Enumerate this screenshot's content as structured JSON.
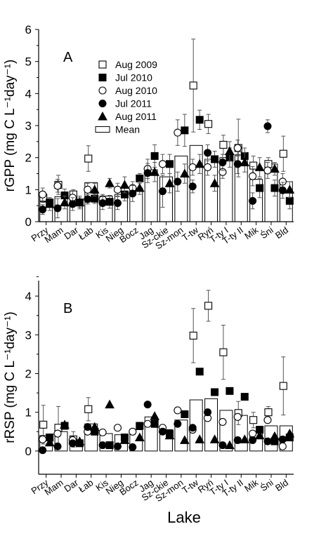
{
  "figure": {
    "xlabel": "Lake"
  },
  "legend": {
    "entries": [
      {
        "label": "Aug 2009",
        "marker": "open-square"
      },
      {
        "label": "Jul 2010",
        "marker": "filled-square"
      },
      {
        "label": "Aug 2010",
        "marker": "open-circle"
      },
      {
        "label": "Jul 2011",
        "marker": "filled-circle"
      },
      {
        "label": "Aug 2011",
        "marker": "filled-triangle"
      },
      {
        "label": "Mean",
        "marker": "bar"
      }
    ],
    "placement": "top-left of panel A"
  },
  "chart_data": [
    {
      "type": "bar",
      "panel_label": "A",
      "ylabel": "rGPP (mg C L⁻¹day⁻¹)",
      "ylim": [
        0,
        6
      ],
      "yticks": [
        0,
        1,
        2,
        3,
        4,
        5,
        6
      ],
      "categories": [
        "Przy",
        "Mam",
        "Dar",
        "Łab",
        "Kis",
        "Nieg",
        "Bocz",
        "Jag",
        "Sz-ckie",
        "Sz-mon",
        "T-tw",
        "Ryń",
        "T-ty I",
        "T-ty II",
        "Mik",
        "Śni",
        "Bld"
      ],
      "mean": [
        0.62,
        0.78,
        0.65,
        1.22,
        0.8,
        0.85,
        1.05,
        1.62,
        1.4,
        2.05,
        2.38,
        1.95,
        2.0,
        2.08,
        1.32,
        1.8,
        1.25
      ],
      "series": [
        {
          "name": "Aug 2009",
          "values": [
            0.75,
            1.15,
            0.85,
            1.97,
            null,
            null,
            null,
            null,
            null,
            null,
            4.25,
            3.05,
            2.4,
            2.3,
            1.75,
            1.8,
            2.12
          ],
          "err": [
            0.15,
            0.3,
            0.15,
            0.4,
            null,
            null,
            null,
            null,
            null,
            null,
            1.45,
            0.3,
            0.3,
            0.9,
            0.3,
            0.2,
            0.55
          ]
        },
        {
          "name": "Jul 2010",
          "values": [
            0.6,
            0.82,
            0.6,
            0.72,
            0.62,
            0.85,
            1.35,
            2.05,
            1.8,
            2.85,
            3.18,
            1.95,
            2.0,
            2.05,
            1.05,
            1.05,
            0.65
          ],
          "err": [
            0.15,
            0.2,
            0.15,
            0.15,
            0.2,
            0.2,
            0.15,
            0.35,
            0.3,
            0.5,
            0.3,
            0.25,
            0.3,
            0.25,
            0.3,
            0.25,
            0.25
          ]
        },
        {
          "name": "Aug 2010",
          "values": [
            0.85,
            1.12,
            0.75,
            1.0,
            0.7,
            1.0,
            1.05,
            1.65,
            1.8,
            2.78,
            1.7,
            1.7,
            1.55,
            2.3,
            1.42,
            1.6,
            1.25
          ],
          "err": [
            0.2,
            0.2,
            0.2,
            0.2,
            0.15,
            0.2,
            0.2,
            0.3,
            0.3,
            0.4,
            0.25,
            0.25,
            0.2,
            0.25,
            0.3,
            0.25,
            0.25
          ]
        },
        {
          "name": "Jul 2011",
          "values": [
            0.38,
            0.42,
            0.55,
            0.7,
            0.58,
            0.58,
            0.88,
            1.52,
            0.95,
            1.25,
            1.1,
            2.15,
            1.85,
            1.8,
            0.65,
            2.98,
            0.98
          ],
          "err": [
            0.15,
            0.3,
            0.2,
            0.15,
            0.2,
            0.2,
            0.25,
            0.3,
            0.5,
            0.3,
            0.2,
            0.25,
            0.25,
            0.3,
            0.25,
            0.2,
            0.25
          ]
        },
        {
          "name": "Aug 2011",
          "values": [
            0.55,
            0.6,
            0.6,
            1.0,
            1.2,
            1.15,
            1.05,
            1.55,
            1.2,
            1.5,
            1.8,
            1.2,
            2.2,
            1.85,
            1.7,
            1.65,
            1.0
          ],
          "err": [
            0.2,
            0.2,
            0.2,
            0.2,
            0.15,
            0.25,
            0.2,
            0.3,
            0.3,
            0.3,
            0.3,
            0.25,
            0.3,
            0.3,
            0.3,
            0.2,
            0.25
          ]
        }
      ]
    },
    {
      "type": "bar",
      "panel_label": "B",
      "ylabel": "rRSP (mg C L⁻¹day⁻¹)",
      "ylim": [
        -0.6,
        4.4
      ],
      "yticks": [
        0,
        1,
        2,
        3,
        4
      ],
      "categories": [
        "Przy",
        "Mam",
        "Dar",
        "Łab",
        "Kis",
        "Nieg",
        "Bocz",
        "Jag",
        "Sz-ckie",
        "Sz-mon",
        "T-tw",
        "Ryń",
        "T-ty I",
        "T-ty II",
        "Mik",
        "Śni",
        "Bld"
      ],
      "mean": [
        0.4,
        0.5,
        0.28,
        0.7,
        0.45,
        0.42,
        0.55,
        0.88,
        0.55,
        0.8,
        1.32,
        1.35,
        1.05,
        0.92,
        0.5,
        0.65,
        0.65
      ],
      "series": [
        {
          "name": "Aug 2009",
          "values": [
            0.68,
            0.6,
            0.3,
            1.08,
            null,
            null,
            null,
            null,
            null,
            null,
            2.98,
            3.75,
            2.55,
            0.98,
            0.8,
            1.0,
            1.68
          ],
          "err": [
            0.5,
            0.55,
            0.2,
            0.3,
            null,
            null,
            null,
            null,
            null,
            null,
            0.7,
            0.4,
            0.7,
            0.3,
            0.2,
            0.15,
            0.75
          ]
        },
        {
          "name": "Jul 2010",
          "values": [
            0.35,
            0.65,
            0.2,
            0.5,
            0.15,
            0.35,
            0.65,
            0.7,
            0.45,
            0.95,
            2.05,
            1.52,
            1.55,
            1.4,
            0.55,
            0.25,
            0.35
          ]
        },
        {
          "name": "Aug 2010",
          "values": [
            0.3,
            0.45,
            0.28,
            0.5,
            0.48,
            0.6,
            0.5,
            0.7,
            0.6,
            1.05,
            0.55,
            0.85,
            0.75,
            0.88,
            0.45,
            0.8,
            0.12
          ]
        },
        {
          "name": "Jul 2011",
          "values": [
            0.02,
            0.12,
            0.2,
            0.62,
            0.15,
            0.12,
            0.1,
            1.2,
            0.5,
            0.7,
            0.6,
            1.0,
            0.15,
            0.28,
            0.28,
            0.25,
            0.3
          ]
        },
        {
          "name": "Aug 2011",
          "values": [
            0.22,
            0.68,
            0.25,
            0.62,
            1.2,
            0.28,
            0.35,
            0.9,
            0.4,
            0.28,
            0.3,
            0.3,
            0.15,
            0.3,
            0.4,
            0.38,
            0.45
          ]
        }
      ]
    }
  ]
}
